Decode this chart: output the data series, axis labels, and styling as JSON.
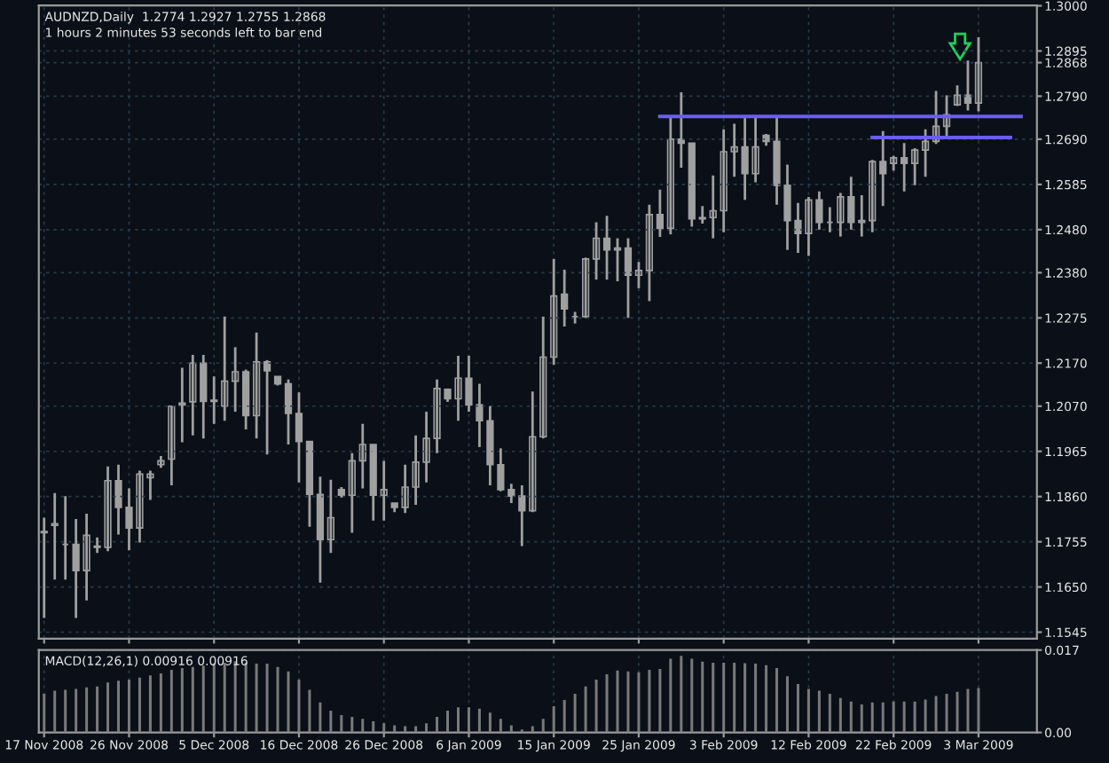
{
  "chart_data": [
    {
      "type": "candlestick",
      "title": "AUDNZD,Daily  1.2774 1.2927 1.2755 1.2868",
      "subtitle": "1 hours 2 minutes 53 seconds left to bar end",
      "categories": [
        null,
        null,
        null,
        null,
        null,
        null,
        null,
        null,
        null,
        null,
        null,
        null,
        null,
        null,
        null,
        null,
        null,
        null,
        null,
        null,
        null,
        null,
        null,
        null,
        null,
        null,
        null,
        null,
        null,
        null,
        null,
        null,
        null,
        null,
        null,
        null,
        null,
        null,
        null,
        null,
        null,
        null,
        null,
        null,
        null,
        null,
        null,
        null,
        null,
        null,
        null,
        null,
        null,
        null,
        null,
        null,
        null,
        null,
        null,
        null,
        null,
        null,
        null,
        null,
        null,
        null,
        null,
        null,
        null,
        null,
        null,
        null,
        null,
        null,
        null,
        null,
        null,
        null,
        null,
        null,
        null,
        null,
        null,
        null,
        null,
        null,
        null,
        null,
        null,
        null,
        null,
        null,
        null,
        null
      ],
      "color": "#a0a0a0",
      "ohlc": [
        [
          1.1776,
          1.1811,
          1.1578,
          1.1779
        ],
        [
          1.1793,
          1.1868,
          1.1667,
          1.1797
        ],
        [
          1.1749,
          1.1861,
          1.1667,
          1.1749
        ],
        [
          1.1749,
          1.1808,
          1.1578,
          1.1688
        ],
        [
          1.1688,
          1.182,
          1.1619,
          1.177
        ],
        [
          1.1745,
          1.1765,
          1.1729,
          1.1742
        ],
        [
          1.1742,
          1.193,
          1.1733,
          1.1897
        ],
        [
          1.1897,
          1.1934,
          1.1772,
          1.1835
        ],
        [
          1.1835,
          1.1879,
          1.1735,
          1.1787
        ],
        [
          1.1787,
          1.192,
          1.1753,
          1.1912
        ],
        [
          1.1904,
          1.192,
          1.1852,
          1.1912
        ],
        [
          1.1934,
          1.1954,
          1.1927,
          1.1943
        ],
        [
          1.1947,
          1.207,
          1.1886,
          1.207
        ],
        [
          1.2073,
          1.2159,
          1.1986,
          1.2077
        ],
        [
          1.208,
          1.2189,
          1.2002,
          1.217
        ],
        [
          1.217,
          1.2189,
          1.1995,
          1.2081
        ],
        [
          1.2081,
          1.2139,
          1.2029,
          1.2084
        ],
        [
          1.207,
          1.2278,
          1.2036,
          1.2128
        ],
        [
          1.2128,
          1.2207,
          1.2057,
          1.215
        ],
        [
          1.215,
          1.2155,
          1.2016,
          1.2048
        ],
        [
          1.2048,
          1.2241,
          1.1995,
          1.2173
        ],
        [
          1.2173,
          1.2177,
          1.1958,
          1.2152
        ],
        [
          1.2139,
          1.2139,
          1.2118,
          1.2122
        ],
        [
          1.2122,
          1.2132,
          1.1981,
          1.2053
        ],
        [
          1.2053,
          1.2102,
          1.1893,
          1.1988
        ],
        [
          1.1988,
          1.1988,
          1.179,
          1.1865
        ],
        [
          1.1865,
          1.1906,
          1.166,
          1.176
        ],
        [
          1.176,
          1.1899,
          1.1729,
          1.1811
        ],
        [
          1.1876,
          1.1882,
          1.1858,
          1.1863
        ],
        [
          1.1863,
          1.1961,
          1.1776,
          1.1943
        ],
        [
          1.1943,
          1.2029,
          1.1879,
          1.1981
        ],
        [
          1.1981,
          1.1981,
          1.1804,
          1.1863
        ],
        [
          1.1863,
          1.1943,
          1.1804,
          1.1876
        ],
        [
          1.1845,
          1.1845,
          1.1824,
          1.1835
        ],
        [
          1.1835,
          1.1934,
          1.1822,
          1.1882
        ],
        [
          1.1882,
          1.2002,
          1.1841,
          1.194
        ],
        [
          1.194,
          1.2057,
          1.1893,
          1.1995
        ],
        [
          1.1995,
          1.2132,
          1.1961,
          1.2111
        ],
        [
          1.2109,
          1.2111,
          1.208,
          1.2087
        ],
        [
          1.2087,
          1.2187,
          1.2036,
          1.2135
        ],
        [
          1.2135,
          1.2187,
          1.2057,
          1.2073
        ],
        [
          1.2073,
          1.2122,
          1.1975,
          1.2036
        ],
        [
          1.2036,
          1.207,
          1.1886,
          1.1934
        ],
        [
          1.1934,
          1.1972,
          1.1872,
          1.1876
        ],
        [
          1.1876,
          1.189,
          1.1845,
          1.1861
        ],
        [
          1.1861,
          1.1886,
          1.1745,
          1.1827
        ],
        [
          1.1827,
          1.2104,
          1.1824,
          1.1999
        ],
        [
          1.1999,
          1.2278,
          1.1995,
          1.2184
        ],
        [
          1.2184,
          1.2412,
          1.2166,
          1.2326
        ],
        [
          1.233,
          1.2387,
          1.2255,
          1.2296
        ],
        [
          1.2278,
          1.2289,
          1.2262,
          1.2278
        ],
        [
          1.2278,
          1.2415,
          1.2275,
          1.2412
        ],
        [
          1.2412,
          1.2497,
          1.2364,
          1.246
        ],
        [
          1.246,
          1.2512,
          1.2364,
          1.2433
        ],
        [
          1.2433,
          1.246,
          1.236,
          1.2437
        ],
        [
          1.2437,
          1.246,
          1.2275,
          1.2374
        ],
        [
          1.2374,
          1.2405,
          1.2344,
          1.2385
        ],
        [
          1.2385,
          1.2538,
          1.2314,
          1.2515
        ],
        [
          1.2515,
          1.2573,
          1.2463,
          1.2483
        ],
        [
          1.2483,
          1.274,
          1.2469,
          1.269
        ],
        [
          1.269,
          1.2799,
          1.2624,
          1.2681
        ],
        [
          1.2681,
          1.2681,
          1.2487,
          1.2505
        ],
        [
          1.2505,
          1.2535,
          1.2494,
          1.2508
        ],
        [
          1.2508,
          1.2606,
          1.246,
          1.2524
        ],
        [
          1.2524,
          1.2713,
          1.2474,
          1.2661
        ],
        [
          1.2661,
          1.2726,
          1.2603,
          1.2672
        ],
        [
          1.2672,
          1.2743,
          1.2549,
          1.261
        ],
        [
          1.261,
          1.274,
          1.259,
          1.2672
        ],
        [
          1.2699,
          1.2702,
          1.2675,
          1.2685
        ],
        [
          1.2685,
          1.2743,
          1.2538,
          1.2583
        ],
        [
          1.2583,
          1.2631,
          1.2433,
          1.2501
        ],
        [
          1.2501,
          1.2542,
          1.2426,
          1.2471
        ],
        [
          1.2471,
          1.2556,
          1.2419,
          1.2549
        ],
        [
          1.2549,
          1.2569,
          1.248,
          1.2497
        ],
        [
          1.2497,
          1.2532,
          1.2474,
          1.2497
        ],
        [
          1.2497,
          1.2565,
          1.2464,
          1.2556
        ],
        [
          1.2556,
          1.2603,
          1.248,
          1.2497
        ],
        [
          1.2497,
          1.256,
          1.2464,
          1.2501
        ],
        [
          1.2501,
          1.2642,
          1.2474,
          1.2638
        ],
        [
          1.2638,
          1.2709,
          1.2535,
          1.261
        ],
        [
          1.2634,
          1.2651,
          1.2617,
          1.2647
        ],
        [
          1.2647,
          1.2681,
          1.2569,
          1.2634
        ],
        [
          1.2634,
          1.2669,
          1.2583,
          1.2665
        ],
        [
          1.2665,
          1.2713,
          1.2603,
          1.2685
        ],
        [
          1.2685,
          1.2802,
          1.2679,
          1.272
        ],
        [
          1.272,
          1.2792,
          1.2692,
          1.2747
        ],
        [
          1.277,
          1.2815,
          1.2767,
          1.2792
        ],
        [
          1.2792,
          1.2873,
          1.2757,
          1.2774
        ],
        [
          1.2774,
          1.2927,
          1.2755,
          1.2868
        ],
        null,
        null,
        null,
        null,
        null
      ],
      "series": [
        {
          "type": "line",
          "color": "#6a5cff",
          "values": [
            null,
            null,
            null,
            null,
            null,
            null,
            null,
            null,
            null,
            null,
            null,
            null,
            null,
            null,
            null,
            null,
            null,
            null,
            null,
            null,
            null,
            null,
            null,
            null,
            null,
            null,
            null,
            null,
            null,
            null,
            null,
            null,
            null,
            null,
            null,
            null,
            null,
            null,
            null,
            null,
            null,
            null,
            null,
            null,
            null,
            null,
            null,
            null,
            null,
            null,
            null,
            null,
            null,
            null,
            null,
            null,
            null,
            null,
            1.2743,
            1.2743,
            1.2743,
            1.2743,
            1.2743,
            1.2743,
            1.2743,
            1.2743,
            1.2743,
            1.2743,
            1.2743,
            1.2743,
            1.2743,
            1.2743,
            1.2743,
            1.2743,
            1.2743,
            1.2743,
            1.2743,
            1.2743,
            1.2743,
            1.2743,
            1.2743,
            1.2743,
            1.2743,
            1.2743,
            1.2743,
            1.2743,
            1.2743,
            1.2743,
            1.2743,
            1.2743,
            1.2743,
            1.2743,
            1.2743,
            null
          ]
        },
        {
          "type": "line",
          "color": "#6a5cff",
          "values": [
            null,
            null,
            null,
            null,
            null,
            null,
            null,
            null,
            null,
            null,
            null,
            null,
            null,
            null,
            null,
            null,
            null,
            null,
            null,
            null,
            null,
            null,
            null,
            null,
            null,
            null,
            null,
            null,
            null,
            null,
            null,
            null,
            null,
            null,
            null,
            null,
            null,
            null,
            null,
            null,
            null,
            null,
            null,
            null,
            null,
            null,
            null,
            null,
            null,
            null,
            null,
            null,
            null,
            null,
            null,
            null,
            null,
            null,
            null,
            null,
            null,
            null,
            null,
            null,
            null,
            null,
            null,
            null,
            null,
            null,
            null,
            null,
            null,
            null,
            null,
            null,
            null,
            null,
            1.2694,
            1.2694,
            1.2694,
            1.2694,
            1.2694,
            1.2694,
            1.2694,
            1.2694,
            1.2694,
            1.2694,
            1.2694,
            1.2694,
            1.2694,
            1.2694,
            null,
            null
          ]
        }
      ],
      "ylim": [
        1.153,
        1.3001
      ],
      "yticks": [
        {
          "value": 1.3,
          "label": "1.3000"
        },
        1.2895,
        1.2868,
        {
          "value": 1.279,
          "label": "1.2790"
        },
        {
          "value": 1.269,
          "label": "1.2690"
        },
        1.2585,
        {
          "value": 1.248,
          "label": "1.2480"
        },
        {
          "value": 1.238,
          "label": "1.2380"
        },
        1.2275,
        {
          "value": 1.217,
          "label": "1.2170"
        },
        {
          "value": 1.207,
          "label": "1.2070"
        },
        1.1965,
        {
          "value": 1.186,
          "label": "1.1860"
        },
        1.1755,
        {
          "value": 1.165,
          "label": "1.1650"
        },
        1.1545
      ],
      "grid": true,
      "tick_labels": "y"
    },
    {
      "type": "bar",
      "title": "MACD(12,26,1) 0.00916 0.00916",
      "color": "#7a7a7a",
      "categories": [
        "17 Nov 2008",
        null,
        null,
        null,
        null,
        null,
        null,
        null,
        "26 Nov 2008",
        null,
        null,
        null,
        null,
        null,
        null,
        null,
        "5 Dec 2008",
        null,
        null,
        null,
        null,
        null,
        null,
        null,
        "16 Dec 2008",
        null,
        null,
        null,
        null,
        null,
        null,
        null,
        "26 Dec 2008",
        null,
        null,
        null,
        null,
        null,
        null,
        null,
        "6 Jan 2009",
        null,
        null,
        null,
        null,
        null,
        null,
        null,
        "15 Jan 2009",
        null,
        null,
        null,
        null,
        null,
        null,
        null,
        "25 Jan 2009",
        null,
        null,
        null,
        null,
        null,
        null,
        null,
        "3 Feb 2009",
        null,
        null,
        null,
        null,
        null,
        null,
        null,
        "12 Feb 2009",
        null,
        null,
        null,
        null,
        null,
        null,
        null,
        "22 Feb 2009",
        null,
        null,
        null,
        null,
        null,
        null,
        null,
        "3 Mar 2009",
        null,
        null,
        null,
        null,
        null
      ],
      "values": [
        0.008,
        0.0086,
        0.0088,
        0.009,
        0.0093,
        0.0095,
        0.0103,
        0.0107,
        0.0109,
        0.0113,
        0.0118,
        0.0122,
        0.0129,
        0.0133,
        0.0135,
        0.0138,
        0.0142,
        0.0144,
        0.0147,
        0.0144,
        0.0142,
        0.0142,
        0.0135,
        0.0126,
        0.0109,
        0.0088,
        0.0062,
        0.0045,
        0.0036,
        0.0032,
        0.0028,
        0.0023,
        0.0019,
        0.0015,
        0.0013,
        0.0013,
        0.0019,
        0.0032,
        0.0045,
        0.0052,
        0.0052,
        0.0049,
        0.0041,
        0.0028,
        0.0015,
        0.0006,
        0.0013,
        0.0028,
        0.0054,
        0.0067,
        0.008,
        0.0095,
        0.0109,
        0.012,
        0.0128,
        0.0126,
        0.0124,
        0.0129,
        0.0131,
        0.0152,
        0.0158,
        0.0152,
        0.0146,
        0.0144,
        0.0144,
        0.0144,
        0.0143,
        0.0142,
        0.0139,
        0.0133,
        0.0116,
        0.01,
        0.009,
        0.0086,
        0.008,
        0.0071,
        0.0064,
        0.0058,
        0.0062,
        0.0062,
        0.0064,
        0.0064,
        0.0064,
        0.0068,
        0.0075,
        0.008,
        0.0084,
        0.009,
        0.00916,
        null,
        null,
        null,
        null,
        null
      ],
      "ylim": [
        0,
        0.017
      ],
      "yticks": [
        0.017,
        {
          "value": 0,
          "label": "0.00"
        }
      ],
      "grid": true
    }
  ]
}
